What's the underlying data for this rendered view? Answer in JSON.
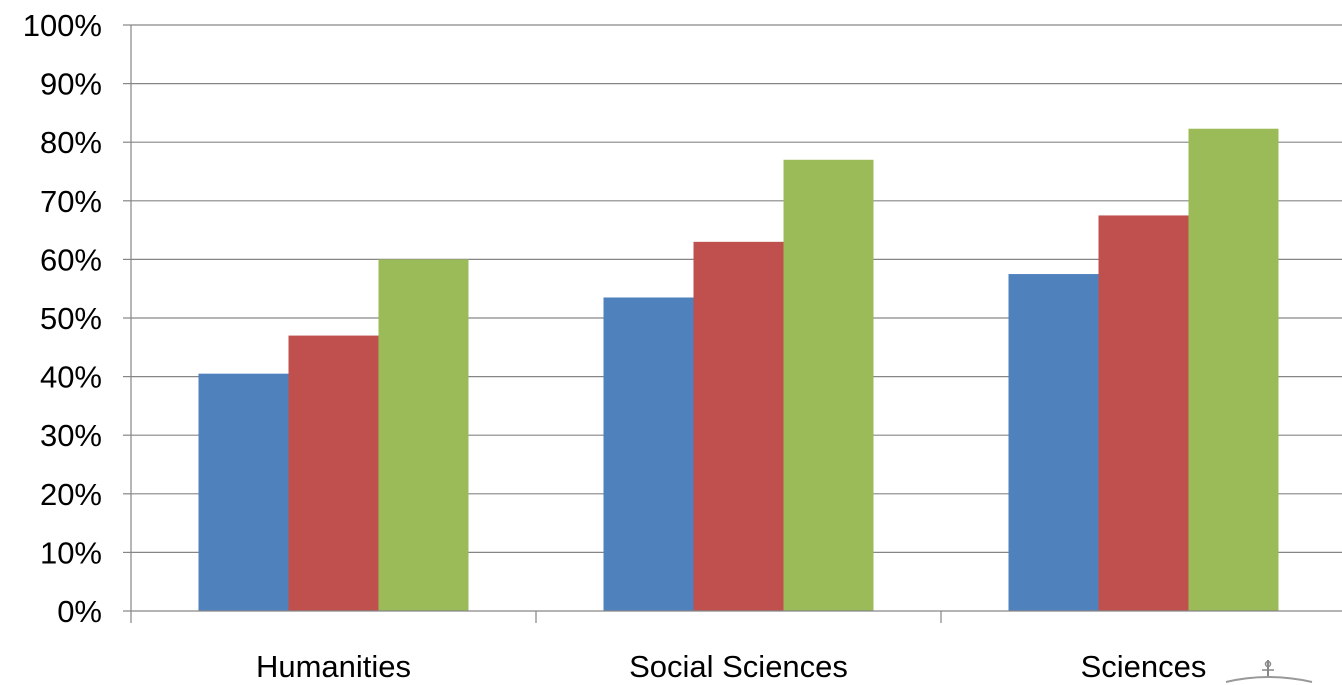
{
  "chart_data": {
    "type": "bar",
    "categories": [
      "Humanities",
      "Social Sciences",
      "Sciences"
    ],
    "series": [
      {
        "color": "#4f81bd",
        "values": [
          40.5,
          53.5,
          57.5
        ]
      },
      {
        "color": "#c0504d",
        "values": [
          47,
          63,
          67.5
        ]
      },
      {
        "color": "#9bbb59",
        "values": [
          60,
          77,
          82.3
        ]
      }
    ],
    "ylim": [
      0,
      100
    ],
    "yticks": [
      "0%",
      "10%",
      "20%",
      "30%",
      "40%",
      "50%",
      "60%",
      "70%",
      "80%",
      "90%",
      "100%"
    ],
    "grid": true,
    "legend": "none"
  }
}
